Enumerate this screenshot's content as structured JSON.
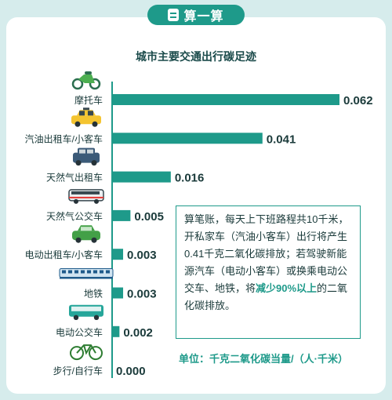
{
  "header": {
    "tag": "算一算"
  },
  "chart_data": {
    "type": "bar",
    "orientation": "horizontal",
    "title": "城市主要交通出行碳足迹",
    "categories": [
      "摩托车",
      "汽油出租车/小客车",
      "天然气出租车",
      "天然气公交车",
      "电动出租车/小客车",
      "地铁",
      "电动公交车",
      "步行/自行车"
    ],
    "icons": [
      "motorcycle-icon",
      "taxi-icon",
      "car-icon",
      "bus-icon",
      "electric-car-icon",
      "subway-icon",
      "electric-bus-icon",
      "bicycle-icon"
    ],
    "values": [
      0.062,
      0.041,
      0.016,
      0.005,
      0.003,
      0.003,
      0.002,
      0.0
    ],
    "value_labels": [
      "0.062",
      "0.041",
      "0.016",
      "0.005",
      "0.003",
      "0.003",
      "0.002",
      "0.000"
    ],
    "xlim": [
      0,
      0.062
    ],
    "bar_color": "#1e9a8a",
    "unit": "单位：千克二氧化碳当量/（人·千米）"
  },
  "note": {
    "part1": "算笔账，每天上下班路程共10千米，开私家车（汽油小客车）出行将产生0.41千克二氧化碳排放；若驾驶新能源汽车（电动小客车）或换乘电动公交车、地铁，将",
    "highlight": "减少90%以上",
    "part2": "的二氧化碳排放。"
  },
  "colors": {
    "accent": "#1e9a8a",
    "background": "#d6ecec",
    "label": "#1a3a3a"
  }
}
